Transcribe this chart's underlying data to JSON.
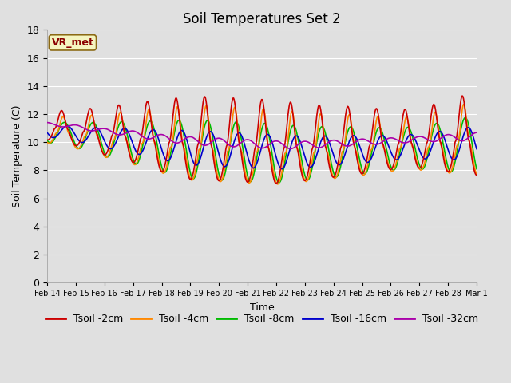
{
  "title": "Soil Temperatures Set 2",
  "xlabel": "Time",
  "ylabel": "Soil Temperature (C)",
  "ylim": [
    0,
    18
  ],
  "annotation_text": "VR_met",
  "background_color": "#e0e0e0",
  "plot_bg_color": "#e0e0e0",
  "grid_color": "#ffffff",
  "legend_labels": [
    "Tsoil -2cm",
    "Tsoil -4cm",
    "Tsoil -8cm",
    "Tsoil -16cm",
    "Tsoil -32cm"
  ],
  "line_colors": [
    "#cc0000",
    "#ff8800",
    "#00bb00",
    "#0000cc",
    "#aa00aa"
  ],
  "x_tick_labels": [
    "Feb 14",
    "Feb 15",
    "Feb 16",
    "Feb 17",
    "Feb 18",
    "Feb 19",
    "Feb 20",
    "Feb 21",
    "Feb 22",
    "Feb 23",
    "Feb 24",
    "Feb 25",
    "Feb 26",
    "Feb 27",
    "Feb 28",
    "Mar 1"
  ],
  "title_fontsize": 12,
  "axis_fontsize": 9,
  "legend_fontsize": 9,
  "line_width": 1.2
}
